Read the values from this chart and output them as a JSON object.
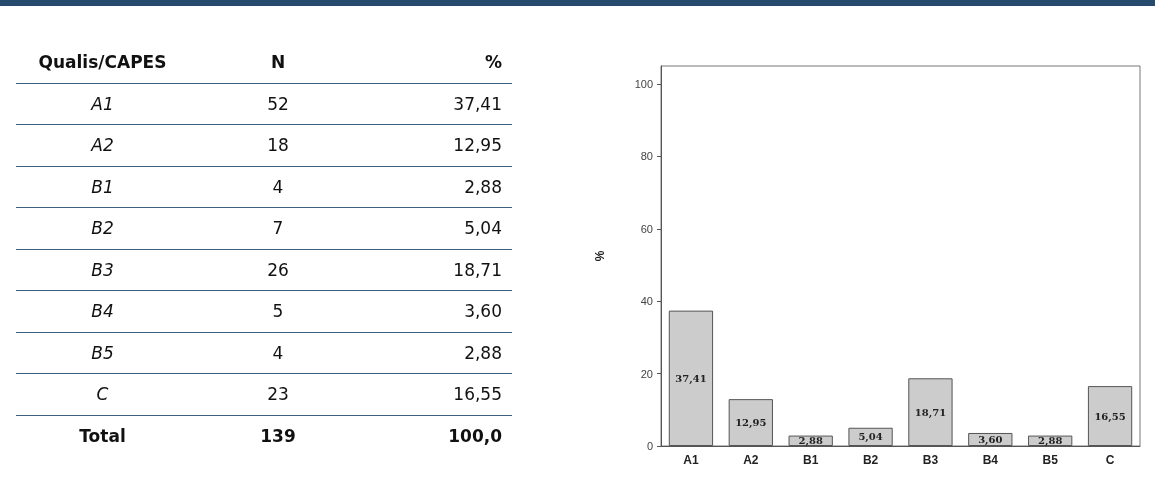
{
  "chart_data": [
    {
      "type": "other",
      "annotations": [
        "Qualis/CAPES",
        "N",
        "%",
        "A1",
        "52",
        "37,41",
        "A2",
        "18",
        "12,95",
        "B1",
        "4",
        "2,88",
        "B2",
        "7",
        "5,04",
        "B3",
        "26",
        "18,71",
        "B4",
        "5",
        "3,60",
        "B5",
        "4",
        "2,88",
        "C",
        "23",
        "16,55",
        "Total",
        "139",
        "100,0"
      ]
    },
    {
      "type": "bar",
      "categories": [
        "A1",
        "A2",
        "B1",
        "B2",
        "B3",
        "B4",
        "B5",
        "C"
      ],
      "values": [
        37.41,
        12.95,
        2.88,
        5.04,
        18.71,
        3.6,
        2.88,
        16.55
      ],
      "value_labels": [
        "37,41",
        "12,95",
        "2,88",
        "5,04",
        "18,71",
        "3,60",
        "2,88",
        "16,55"
      ],
      "color": "#cccccc",
      "ylabel": "%",
      "ylim": [
        0,
        105
      ],
      "yticks": [
        0,
        20,
        40,
        60,
        80,
        100
      ]
    }
  ]
}
